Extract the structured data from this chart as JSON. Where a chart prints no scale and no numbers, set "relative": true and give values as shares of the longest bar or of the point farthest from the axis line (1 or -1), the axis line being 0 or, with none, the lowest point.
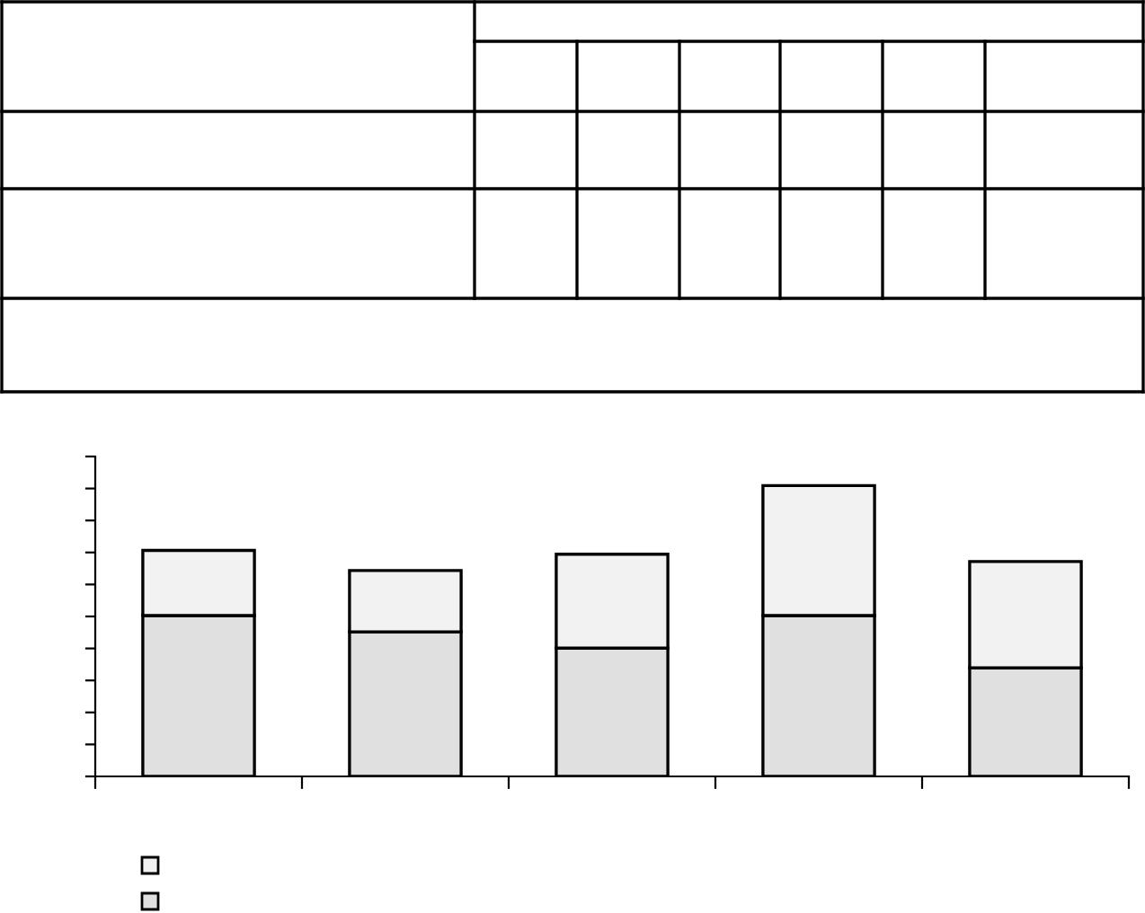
{
  "chart_data": {
    "type": "bar",
    "stacked": true,
    "relative": true,
    "tick_labels": false,
    "grid": false,
    "categories": [
      null,
      null,
      null,
      null,
      null
    ],
    "series": [
      {
        "color": "#e0e0e0",
        "values": [
          0.553,
          0.497,
          0.441,
          0.553,
          0.373
        ]
      },
      {
        "color": "#f2f2f2",
        "values": [
          0.224,
          0.211,
          0.323,
          0.447,
          0.366
        ]
      }
    ]
  }
}
